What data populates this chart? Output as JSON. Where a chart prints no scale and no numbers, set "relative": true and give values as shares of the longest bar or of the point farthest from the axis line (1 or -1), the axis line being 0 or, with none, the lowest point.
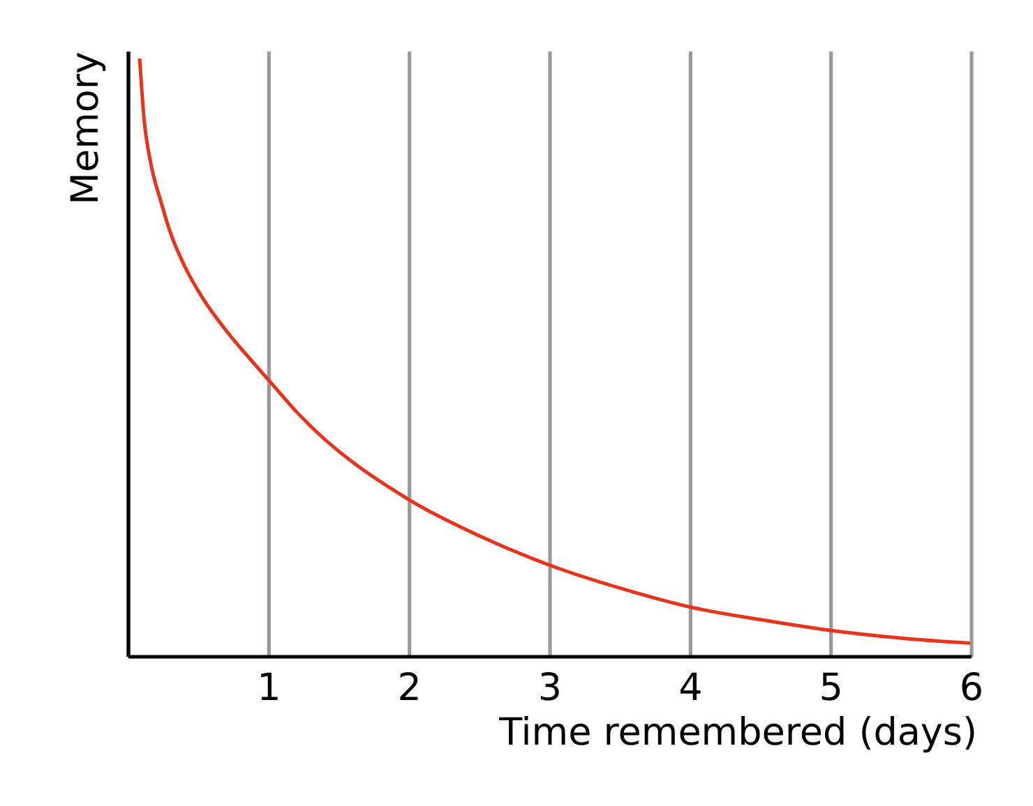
{
  "chart_data": {
    "type": "line",
    "xlabel": "Time remembered (days)",
    "ylabel": "Memory",
    "relative": true,
    "x": [
      0.08,
      0.11,
      0.16,
      0.23,
      0.3,
      0.4,
      0.53,
      0.7,
      0.88,
      1,
      1.21,
      2,
      2.48,
      3,
      3.51,
      4,
      4.5,
      5,
      5.51,
      5.98
    ],
    "values": [
      1,
      0.902,
      0.824,
      0.762,
      0.708,
      0.653,
      0.599,
      0.544,
      0.494,
      0.462,
      0.406,
      0.262,
      0.204,
      0.153,
      0.114,
      0.083,
      0.062,
      0.044,
      0.031,
      0.023
    ],
    "color": "#e8341c",
    "xlim": [
      0,
      6
    ],
    "xticks": [
      1,
      2,
      3,
      4,
      5,
      6
    ],
    "grid": "x",
    "marker": "none"
  }
}
